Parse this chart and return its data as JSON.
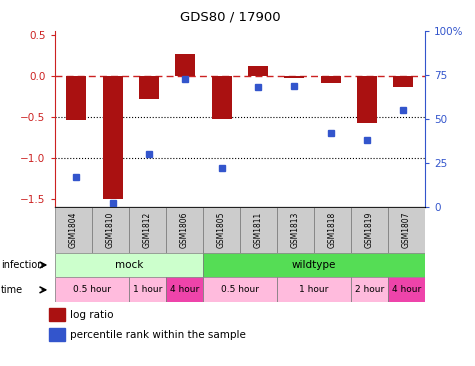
{
  "title": "GDS80 / 17900",
  "samples": [
    "GSM1804",
    "GSM1810",
    "GSM1812",
    "GSM1806",
    "GSM1805",
    "GSM1811",
    "GSM1813",
    "GSM1818",
    "GSM1819",
    "GSM1807"
  ],
  "log_ratio": [
    -0.54,
    -1.5,
    -0.28,
    0.27,
    -0.52,
    0.12,
    -0.02,
    -0.09,
    -0.57,
    -0.13
  ],
  "percentile": [
    17,
    2,
    30,
    73,
    22,
    68,
    69,
    42,
    38,
    55
  ],
  "ylim_left": [
    -1.6,
    0.55
  ],
  "ylim_right": [
    0,
    100
  ],
  "yticks_left": [
    -1.5,
    -1.0,
    -0.5,
    0.0,
    0.5
  ],
  "yticks_right": [
    0,
    25,
    50,
    75,
    100
  ],
  "yticklabels_right": [
    "0",
    "25",
    "50",
    "75",
    "100%"
  ],
  "bar_color": "#AA1111",
  "dot_color": "#3355CC",
  "dashed_line_color": "#CC2222",
  "infection_groups": [
    {
      "label": "mock",
      "start": 0,
      "end": 4,
      "color": "#CCFFCC"
    },
    {
      "label": "wildtype",
      "start": 4,
      "end": 10,
      "color": "#55DD55"
    }
  ],
  "time_groups": [
    {
      "label": "0.5 hour",
      "start": 0,
      "end": 2,
      "color": "#FFBBDD"
    },
    {
      "label": "1 hour",
      "start": 2,
      "end": 3,
      "color": "#FFBBDD"
    },
    {
      "label": "4 hour",
      "start": 3,
      "end": 4,
      "color": "#EE44AA"
    },
    {
      "label": "0.5 hour",
      "start": 4,
      "end": 6,
      "color": "#FFBBDD"
    },
    {
      "label": "1 hour",
      "start": 6,
      "end": 8,
      "color": "#FFBBDD"
    },
    {
      "label": "2 hour",
      "start": 8,
      "end": 9,
      "color": "#FFBBDD"
    },
    {
      "label": "4 hour",
      "start": 9,
      "end": 10,
      "color": "#EE44AA"
    }
  ]
}
